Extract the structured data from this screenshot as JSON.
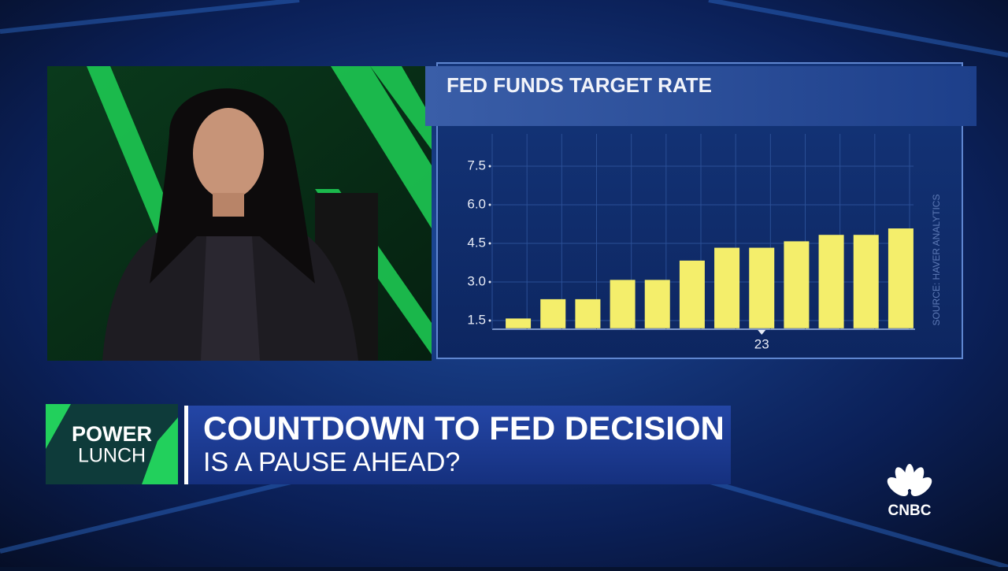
{
  "chart_data": {
    "type": "bar",
    "title": "FED FUNDS TARGET RATE",
    "categories": [
      null,
      null,
      null,
      null,
      null,
      null,
      null,
      "23",
      null,
      null,
      null,
      null
    ],
    "values": [
      1.58,
      2.33,
      2.33,
      3.08,
      3.08,
      3.83,
      4.33,
      4.33,
      4.58,
      4.83,
      4.83,
      5.08
    ],
    "color": "#f4ee6b",
    "ylim": [
      1.2,
      8.4
    ],
    "yticks": [
      1.5,
      {
        "value": 3,
        "label": "3.0"
      },
      4.5,
      {
        "value": 6,
        "label": "6.0"
      },
      7.5
    ],
    "grid": true,
    "source": "SOURCE: HAVER ANALYTICS"
  },
  "show": {
    "line1": "POWER",
    "line2": "LUNCH"
  },
  "headline": {
    "title": "COUNTDOWN TO FED DECISION",
    "subtitle": "IS A PAUSE AHEAD?"
  },
  "network": "CNBC"
}
